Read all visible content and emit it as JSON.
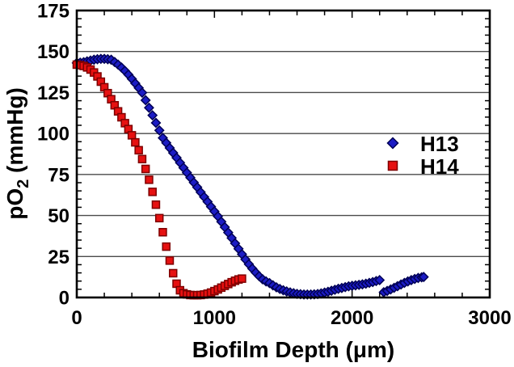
{
  "page": {
    "background": "#ffffff"
  },
  "chart_data": {
    "type": "scatter",
    "title": "",
    "xlabel": "Biofilm Depth (μm)",
    "ylabel": {
      "pre": "pO",
      "sub": "2",
      "post": " (mmHg)"
    },
    "xlim": [
      0,
      3000
    ],
    "ylim": [
      0,
      175
    ],
    "x_ticks": [
      0,
      1000,
      2000,
      3000
    ],
    "y_ticks": [
      0,
      25,
      50,
      75,
      100,
      125,
      150,
      175
    ],
    "x_minor_step": 200,
    "y_minor_step": 5,
    "grid": {
      "horizontal": true,
      "vertical": false,
      "color": "#4a4a4a"
    },
    "frame_color": "#000000",
    "text_color": "#000000",
    "legend": {
      "position": "middle-right",
      "entries": [
        {
          "label": "H13",
          "marker": "diamond",
          "color": "#1c1cc4",
          "edge": "#000055"
        },
        {
          "label": "H14",
          "marker": "square",
          "color": "#e61111",
          "edge": "#7d0000"
        }
      ]
    },
    "series": [
      {
        "name": "H13",
        "marker": "diamond",
        "fill": "#1c1cc4",
        "edge": "#000055",
        "segments": [
          [
            [
              0,
              143
            ],
            [
              25,
              143.2
            ],
            [
              50,
              143.5
            ],
            [
              75,
              144
            ],
            [
              100,
              144.5
            ],
            [
              125,
              145
            ],
            [
              150,
              145.3
            ],
            [
              175,
              145.5
            ],
            [
              200,
              145.5
            ],
            [
              225,
              145.3
            ],
            [
              250,
              145
            ],
            [
              275,
              143.6
            ],
            [
              300,
              142
            ],
            [
              325,
              140.2
            ],
            [
              350,
              138.2
            ],
            [
              375,
              135.9
            ],
            [
              400,
              133.3
            ],
            [
              425,
              130.6
            ],
            [
              450,
              127.8
            ],
            [
              475,
              124.9
            ],
            [
              500,
              120.3
            ],
            [
              525,
              115.7
            ],
            [
              550,
              111.1
            ],
            [
              575,
              106.5
            ],
            [
              600,
              101.9
            ],
            [
              625,
              97.3
            ],
            [
              650,
              94.3
            ],
            [
              675,
              91.2
            ],
            [
              700,
              88.2
            ],
            [
              725,
              85.2
            ],
            [
              750,
              82.2
            ],
            [
              775,
              79.1
            ],
            [
              800,
              76.1
            ],
            [
              825,
              73.1
            ],
            [
              850,
              70.1
            ],
            [
              875,
              67.2
            ],
            [
              900,
              64.2
            ],
            [
              925,
              61.3
            ],
            [
              950,
              58.4
            ],
            [
              975,
              55.4
            ],
            [
              1000,
              52.5
            ],
            [
              1025,
              49.5
            ],
            [
              1050,
              46.2
            ],
            [
              1075,
              42.9
            ],
            [
              1100,
              39.6
            ],
            [
              1125,
              36.3
            ],
            [
              1150,
              33
            ],
            [
              1175,
              29.7
            ],
            [
              1200,
              26.4
            ],
            [
              1225,
              23.2
            ],
            [
              1250,
              20.3
            ],
            [
              1275,
              17.6
            ],
            [
              1300,
              15.2
            ],
            [
              1325,
              13
            ],
            [
              1350,
              11.1
            ],
            [
              1375,
              9.8
            ],
            [
              1400,
              8.8
            ],
            [
              1425,
              7.4
            ],
            [
              1450,
              6.2
            ],
            [
              1475,
              5.2
            ],
            [
              1500,
              4.4
            ],
            [
              1525,
              3.7
            ],
            [
              1550,
              3.1
            ],
            [
              1575,
              2.6
            ],
            [
              1600,
              2.2
            ],
            [
              1625,
              2
            ],
            [
              1650,
              1.8
            ],
            [
              1675,
              1.8
            ],
            [
              1700,
              1.8
            ],
            [
              1725,
              1.9
            ],
            [
              1750,
              2.1
            ],
            [
              1775,
              2.5
            ],
            [
              1800,
              3
            ],
            [
              1825,
              3.5
            ],
            [
              1850,
              4.1
            ],
            [
              1875,
              4.7
            ],
            [
              1900,
              5.3
            ],
            [
              1925,
              5.8
            ],
            [
              1950,
              6.3
            ],
            [
              1975,
              6.8
            ],
            [
              2000,
              7.1
            ],
            [
              2025,
              7.4
            ],
            [
              2050,
              7.7
            ],
            [
              2075,
              8
            ],
            [
              2100,
              8.4
            ],
            [
              2125,
              8.9
            ],
            [
              2150,
              9.4
            ],
            [
              2175,
              10
            ],
            [
              2200,
              10.6
            ]
          ],
          [
            [
              2230,
              3.2
            ],
            [
              2255,
              4
            ],
            [
              2280,
              4.9
            ],
            [
              2305,
              5.9
            ],
            [
              2330,
              6.9
            ],
            [
              2355,
              7.9
            ],
            [
              2380,
              8.9
            ],
            [
              2405,
              9.8
            ],
            [
              2430,
              10.6
            ],
            [
              2455,
              11.3
            ],
            [
              2480,
              11.9
            ],
            [
              2505,
              12.3
            ],
            [
              2520,
              12.5
            ]
          ]
        ]
      },
      {
        "name": "H14",
        "marker": "square",
        "fill": "#e61111",
        "edge": "#7d0000",
        "segments": [
          [
            [
              0,
              142
            ],
            [
              25,
              141.7
            ],
            [
              50,
              141.2
            ],
            [
              75,
              140.3
            ],
            [
              100,
              139
            ],
            [
              125,
              137.2
            ],
            [
              150,
              134.8
            ],
            [
              175,
              131.6
            ],
            [
              200,
              128.2
            ],
            [
              225,
              124.6
            ],
            [
              250,
              120.9
            ],
            [
              275,
              117.2
            ],
            [
              300,
              113.5
            ],
            [
              325,
              109.9
            ],
            [
              350,
              106.3
            ],
            [
              375,
              102.7
            ],
            [
              400,
              98.9
            ],
            [
              425,
              94.6
            ],
            [
              450,
              89.8
            ],
            [
              475,
              84.4
            ],
            [
              500,
              78.4
            ],
            [
              525,
              71.8
            ],
            [
              550,
              64.4
            ],
            [
              575,
              56.6
            ],
            [
              600,
              48.4
            ],
            [
              625,
              39.8
            ],
            [
              650,
              31
            ],
            [
              675,
              22.5
            ],
            [
              700,
              14.8
            ],
            [
              725,
              8.4
            ],
            [
              750,
              4.4
            ],
            [
              775,
              2.6
            ],
            [
              800,
              1.9
            ],
            [
              825,
              1.5
            ],
            [
              850,
              1.4
            ],
            [
              875,
              1.4
            ],
            [
              900,
              1.5
            ],
            [
              925,
              1.8
            ],
            [
              950,
              2.3
            ],
            [
              975,
              3
            ],
            [
              1000,
              3.9
            ],
            [
              1025,
              4.9
            ],
            [
              1050,
              6
            ],
            [
              1075,
              7.1
            ],
            [
              1100,
              8.2
            ],
            [
              1125,
              9.3
            ],
            [
              1150,
              10.2
            ],
            [
              1175,
              11
            ],
            [
              1200,
              11.5
            ]
          ]
        ]
      }
    ]
  }
}
